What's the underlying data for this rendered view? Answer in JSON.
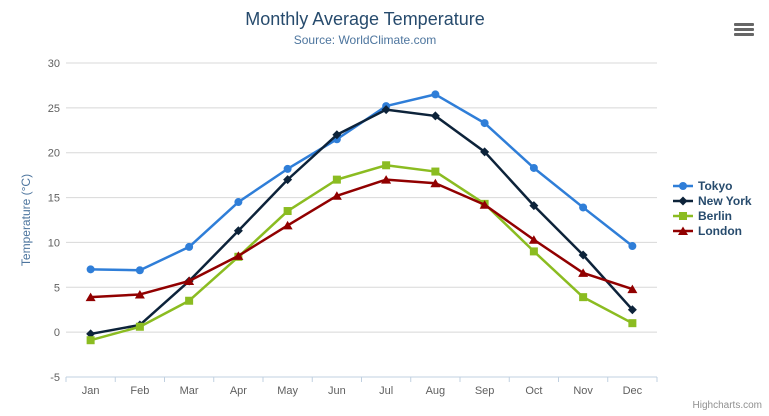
{
  "credit": "Highcharts.com",
  "chart_data": {
    "type": "line",
    "title": "Monthly Average Temperature",
    "subtitle": "Source: WorldClimate.com",
    "xlabel": "",
    "ylabel": "Temperature (°C)",
    "ylim": [
      -5,
      30
    ],
    "ytick_step": 5,
    "grid": true,
    "legend_position": "right",
    "categories": [
      "Jan",
      "Feb",
      "Mar",
      "Apr",
      "May",
      "Jun",
      "Jul",
      "Aug",
      "Sep",
      "Oct",
      "Nov",
      "Dec"
    ],
    "series": [
      {
        "name": "Tokyo",
        "color": "#2f7ed8",
        "marker": "circle",
        "values": [
          7.0,
          6.9,
          9.5,
          14.5,
          18.2,
          21.5,
          25.2,
          26.5,
          23.3,
          18.3,
          13.9,
          9.6
        ]
      },
      {
        "name": "New York",
        "color": "#0d233a",
        "marker": "diamond",
        "values": [
          -0.2,
          0.8,
          5.7,
          11.3,
          17.0,
          22.0,
          24.8,
          24.1,
          20.1,
          14.1,
          8.6,
          2.5
        ]
      },
      {
        "name": "Berlin",
        "color": "#8bbc21",
        "marker": "square",
        "values": [
          -0.9,
          0.6,
          3.5,
          8.4,
          13.5,
          17.0,
          18.6,
          17.9,
          14.3,
          9.0,
          3.9,
          1.0
        ]
      },
      {
        "name": "London",
        "color": "#910000",
        "marker": "triangle",
        "values": [
          3.9,
          4.2,
          5.7,
          8.5,
          11.9,
          15.2,
          17.0,
          16.6,
          14.2,
          10.3,
          6.6,
          4.8
        ]
      }
    ],
    "axis_colors": {
      "grid": "#d8d8d8",
      "axis_line": "#c0d0e0",
      "labels": "#606060",
      "axis_title": "#4d759e",
      "title": "#274b6d",
      "subtitle": "#4d759e"
    },
    "icons": {
      "menu": "hamburger-menu-icon"
    }
  }
}
